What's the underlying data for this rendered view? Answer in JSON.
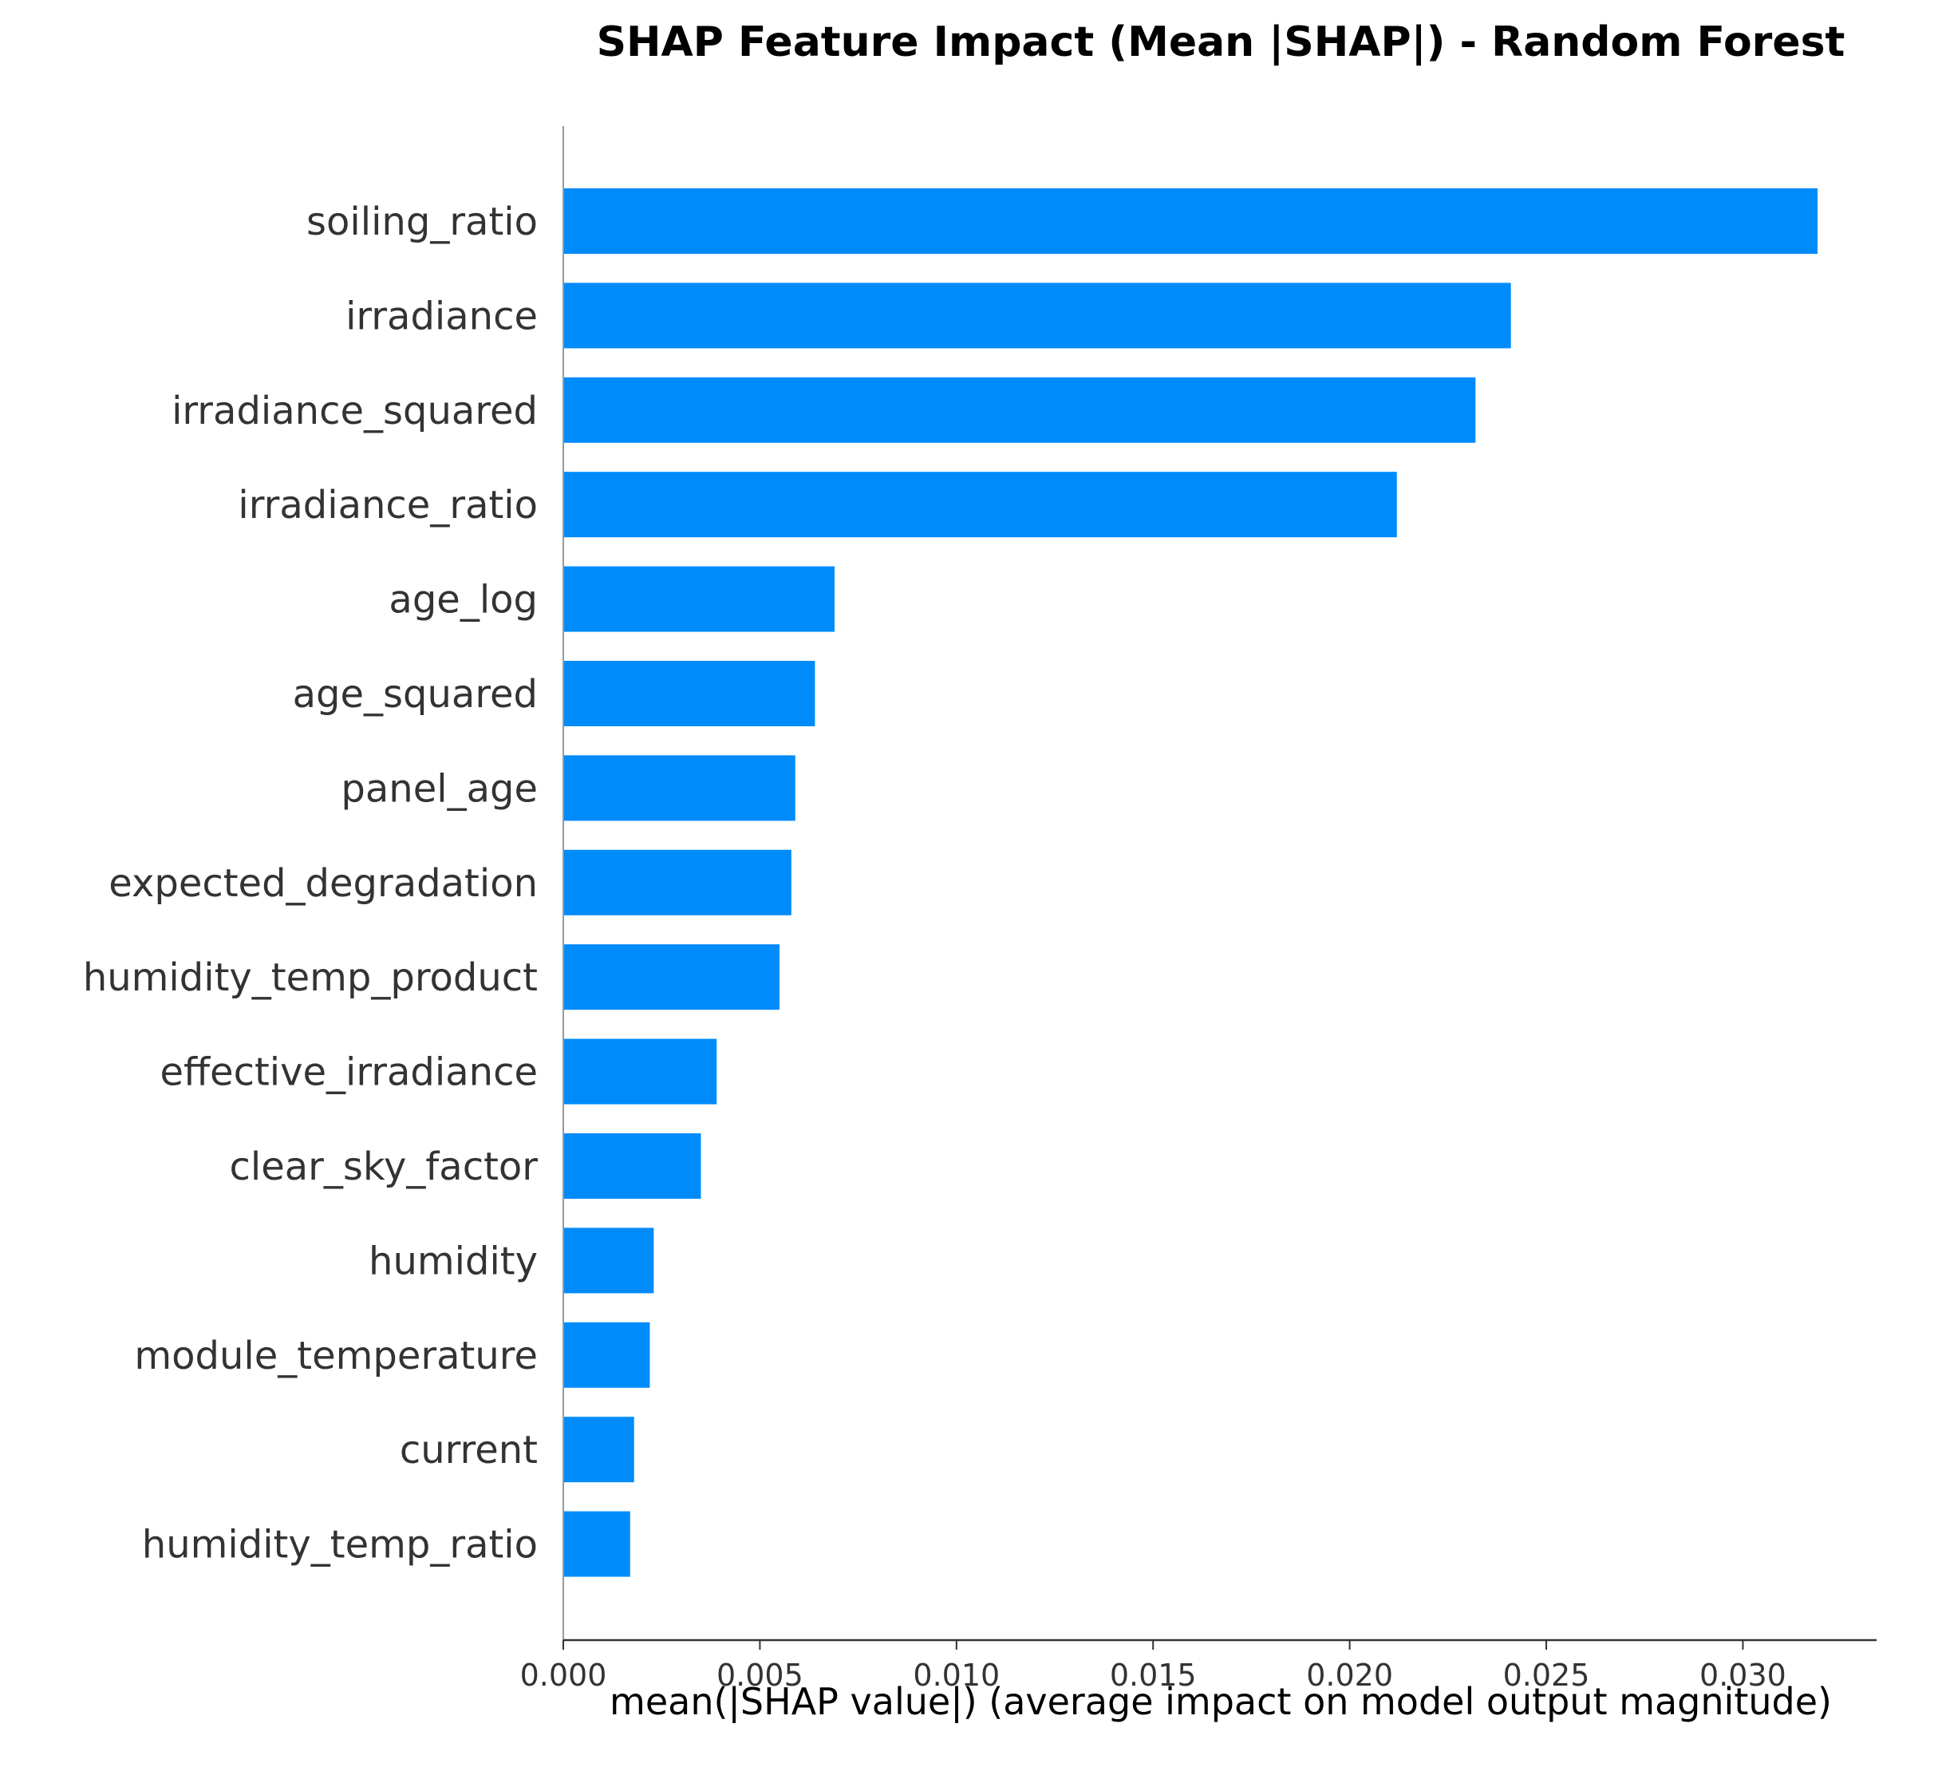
{
  "chart_data": {
    "type": "bar",
    "orientation": "horizontal",
    "title": "SHAP Feature Impact (Mean |SHAP|) - Random Forest",
    "xlabel": "mean(|SHAP value|) (average impact on model output magnitude)",
    "ylabel": "",
    "categories": [
      "soiling_ratio",
      "irradiance",
      "irradiance_squared",
      "irradiance_ratio",
      "age_log",
      "age_squared",
      "panel_age",
      "expected_degradation",
      "humidity_temp_product",
      "effective_irradiance",
      "clear_sky_factor",
      "humidity",
      "module_temperature",
      "current",
      "humidity_temp_ratio"
    ],
    "values": [
      0.0319,
      0.0241,
      0.0232,
      0.0212,
      0.0069,
      0.0064,
      0.0059,
      0.0058,
      0.0055,
      0.0039,
      0.0035,
      0.0023,
      0.0022,
      0.0018,
      0.0017
    ],
    "xlim": [
      0,
      0.0334
    ],
    "xticks": [
      "0.000",
      "0.005",
      "0.010",
      "0.015",
      "0.020",
      "0.025",
      "0.030"
    ],
    "xtick_values": [
      0,
      0.005,
      0.01,
      0.015,
      0.02,
      0.025,
      0.03
    ],
    "grid": false,
    "legend": "none",
    "bar_color": "#008bfb",
    "axis_color": "#333333"
  }
}
